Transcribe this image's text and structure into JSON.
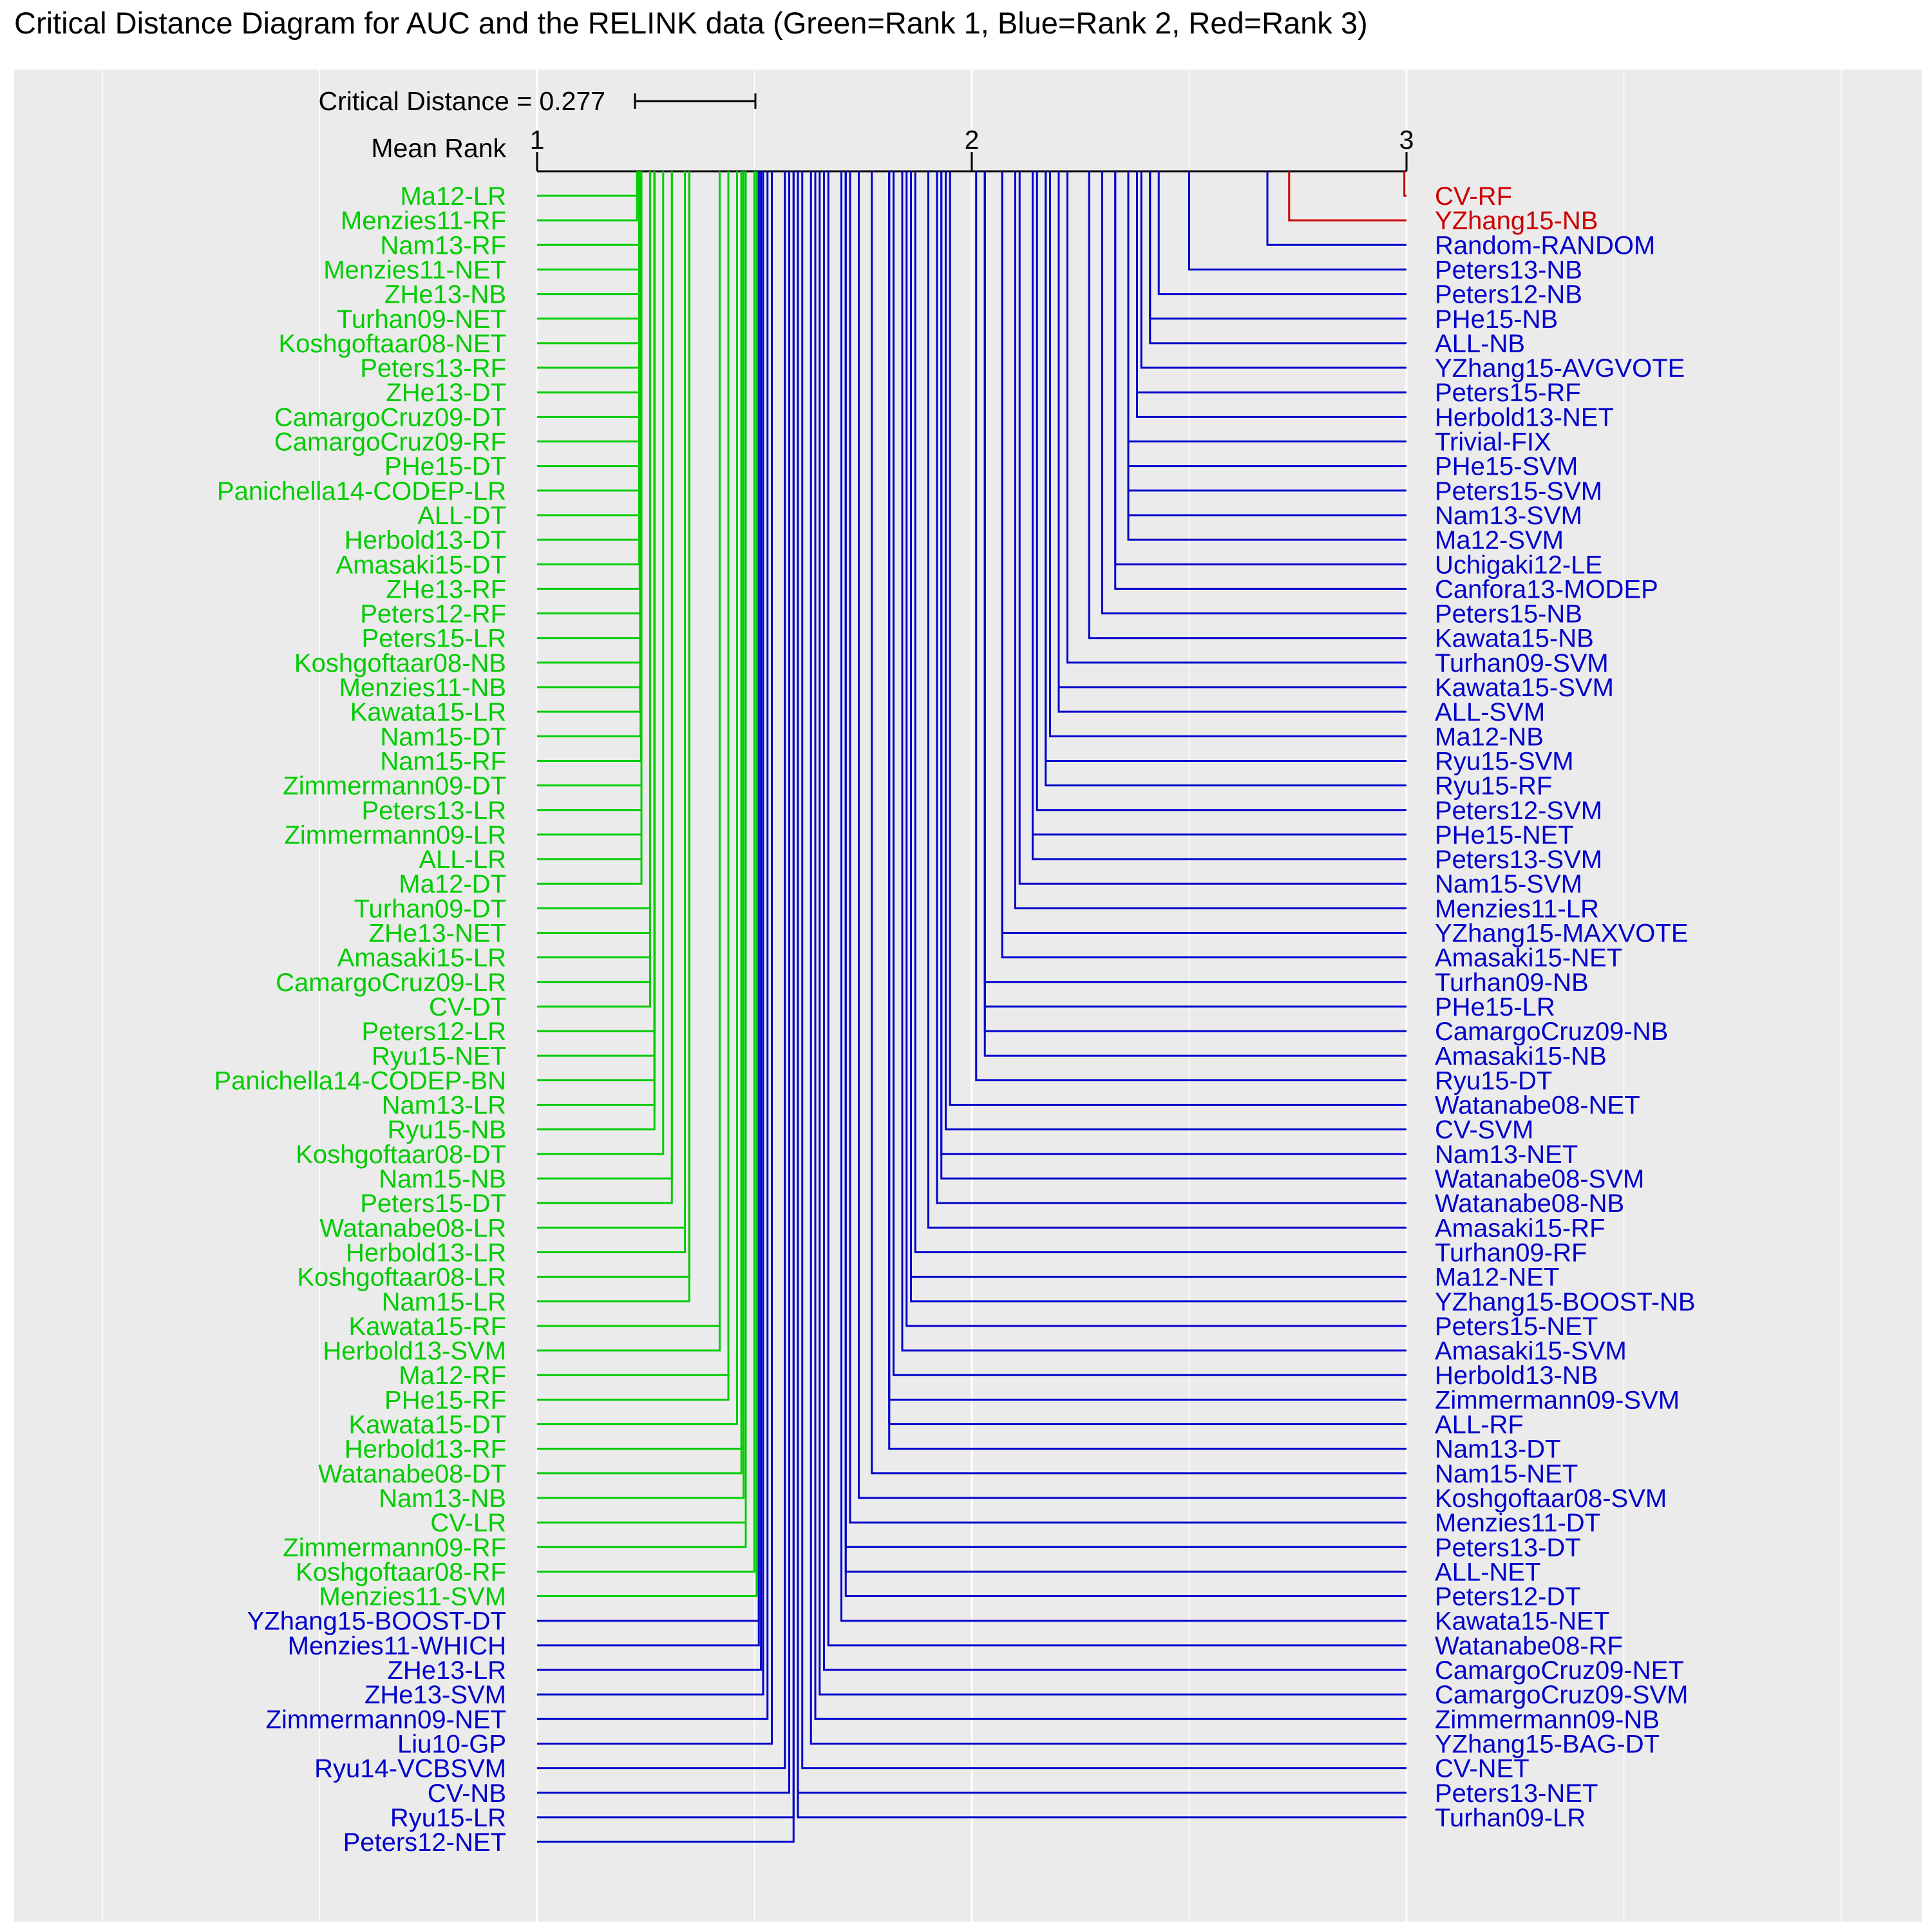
{
  "chart_data": {
    "type": "critical-distance-diagram",
    "title": "Critical Distance Diagram for AUC and the RELINK data (Green=Rank 1, Blue=Rank 2, Red=Rank 3)",
    "critical_distance_label": "Critical Distance = 0.277",
    "critical_distance": 0.277,
    "axis_label": "Mean Rank",
    "ticks": [
      "1",
      "2",
      "3"
    ],
    "xlim": [
      1,
      3
    ],
    "grid": true,
    "rank_colors": {
      "1": "#00cc00",
      "2": "#0000cc",
      "3": "#cc0000"
    },
    "left_items": [
      {
        "name": "Ma12-LR",
        "mean_rank": 1.23,
        "rank": 1
      },
      {
        "name": "Menzies11-RF",
        "mean_rank": 1.23,
        "rank": 1
      },
      {
        "name": "Nam13-RF",
        "mean_rank": 1.235,
        "rank": 1
      },
      {
        "name": "Menzies11-NET",
        "mean_rank": 1.235,
        "rank": 1
      },
      {
        "name": "ZHe13-NB",
        "mean_rank": 1.235,
        "rank": 1
      },
      {
        "name": "Turhan09-NET",
        "mean_rank": 1.235,
        "rank": 1
      },
      {
        "name": "Koshgoftaar08-NET",
        "mean_rank": 1.235,
        "rank": 1
      },
      {
        "name": "Peters13-RF",
        "mean_rank": 1.235,
        "rank": 1
      },
      {
        "name": "ZHe13-DT",
        "mean_rank": 1.235,
        "rank": 1
      },
      {
        "name": "CamargoCruz09-DT",
        "mean_rank": 1.235,
        "rank": 1
      },
      {
        "name": "CamargoCruz09-RF",
        "mean_rank": 1.235,
        "rank": 1
      },
      {
        "name": "PHe15-DT",
        "mean_rank": 1.235,
        "rank": 1
      },
      {
        "name": "Panichella14-CODEP-LR",
        "mean_rank": 1.235,
        "rank": 1
      },
      {
        "name": "ALL-DT",
        "mean_rank": 1.235,
        "rank": 1
      },
      {
        "name": "Herbold13-DT",
        "mean_rank": 1.235,
        "rank": 1
      },
      {
        "name": "Amasaki15-DT",
        "mean_rank": 1.235,
        "rank": 1
      },
      {
        "name": "ZHe13-RF",
        "mean_rank": 1.236,
        "rank": 1
      },
      {
        "name": "Peters12-RF",
        "mean_rank": 1.237,
        "rank": 1
      },
      {
        "name": "Peters15-LR",
        "mean_rank": 1.237,
        "rank": 1
      },
      {
        "name": "Koshgoftaar08-NB",
        "mean_rank": 1.237,
        "rank": 1
      },
      {
        "name": "Menzies11-NB",
        "mean_rank": 1.237,
        "rank": 1
      },
      {
        "name": "Kawata15-LR",
        "mean_rank": 1.237,
        "rank": 1
      },
      {
        "name": "Nam15-DT",
        "mean_rank": 1.238,
        "rank": 1
      },
      {
        "name": "Nam15-RF",
        "mean_rank": 1.239,
        "rank": 1
      },
      {
        "name": "Zimmermann09-DT",
        "mean_rank": 1.24,
        "rank": 1
      },
      {
        "name": "Peters13-LR",
        "mean_rank": 1.24,
        "rank": 1
      },
      {
        "name": "Zimmermann09-LR",
        "mean_rank": 1.24,
        "rank": 1
      },
      {
        "name": "ALL-LR",
        "mean_rank": 1.24,
        "rank": 1
      },
      {
        "name": "Ma12-DT",
        "mean_rank": 1.24,
        "rank": 1
      },
      {
        "name": "Turhan09-DT",
        "mean_rank": 1.26,
        "rank": 1
      },
      {
        "name": "ZHe13-NET",
        "mean_rank": 1.26,
        "rank": 1
      },
      {
        "name": "Amasaki15-LR",
        "mean_rank": 1.26,
        "rank": 1
      },
      {
        "name": "CamargoCruz09-LR",
        "mean_rank": 1.26,
        "rank": 1
      },
      {
        "name": "CV-DT",
        "mean_rank": 1.26,
        "rank": 1
      },
      {
        "name": "Peters12-LR",
        "mean_rank": 1.27,
        "rank": 1
      },
      {
        "name": "Ryu15-NET",
        "mean_rank": 1.27,
        "rank": 1
      },
      {
        "name": "Panichella14-CODEP-BN",
        "mean_rank": 1.27,
        "rank": 1
      },
      {
        "name": "Nam13-LR",
        "mean_rank": 1.27,
        "rank": 1
      },
      {
        "name": "Ryu15-NB",
        "mean_rank": 1.27,
        "rank": 1
      },
      {
        "name": "Koshgoftaar08-DT",
        "mean_rank": 1.29,
        "rank": 1
      },
      {
        "name": "Nam15-NB",
        "mean_rank": 1.31,
        "rank": 1
      },
      {
        "name": "Peters15-DT",
        "mean_rank": 1.31,
        "rank": 1
      },
      {
        "name": "Watanabe08-LR",
        "mean_rank": 1.34,
        "rank": 1
      },
      {
        "name": "Herbold13-LR",
        "mean_rank": 1.34,
        "rank": 1
      },
      {
        "name": "Koshgoftaar08-LR",
        "mean_rank": 1.35,
        "rank": 1
      },
      {
        "name": "Nam15-LR",
        "mean_rank": 1.35,
        "rank": 1
      },
      {
        "name": "Kawata15-RF",
        "mean_rank": 1.42,
        "rank": 1
      },
      {
        "name": "Herbold13-SVM",
        "mean_rank": 1.42,
        "rank": 1
      },
      {
        "name": "Ma12-RF",
        "mean_rank": 1.44,
        "rank": 1
      },
      {
        "name": "PHe15-RF",
        "mean_rank": 1.44,
        "rank": 1
      },
      {
        "name": "Kawata15-DT",
        "mean_rank": 1.46,
        "rank": 1
      },
      {
        "name": "Herbold13-RF",
        "mean_rank": 1.47,
        "rank": 1
      },
      {
        "name": "Watanabe08-DT",
        "mean_rank": 1.47,
        "rank": 1
      },
      {
        "name": "Nam13-NB",
        "mean_rank": 1.475,
        "rank": 1
      },
      {
        "name": "CV-LR",
        "mean_rank": 1.48,
        "rank": 1
      },
      {
        "name": "Zimmermann09-RF",
        "mean_rank": 1.48,
        "rank": 1
      },
      {
        "name": "Koshgoftaar08-RF",
        "mean_rank": 1.5,
        "rank": 1
      },
      {
        "name": "Menzies11-SVM",
        "mean_rank": 1.505,
        "rank": 1
      },
      {
        "name": "YZhang15-BOOST-DT",
        "mean_rank": 1.51,
        "rank": 2
      },
      {
        "name": "Menzies11-WHICH",
        "mean_rank": 1.51,
        "rank": 2
      },
      {
        "name": "ZHe13-LR",
        "mean_rank": 1.515,
        "rank": 2
      },
      {
        "name": "ZHe13-SVM",
        "mean_rank": 1.52,
        "rank": 2
      },
      {
        "name": "Zimmermann09-NET",
        "mean_rank": 1.53,
        "rank": 2
      },
      {
        "name": "Liu10-GP",
        "mean_rank": 1.54,
        "rank": 2
      },
      {
        "name": "Ryu14-VCBSVM",
        "mean_rank": 1.57,
        "rank": 2
      },
      {
        "name": "CV-NB",
        "mean_rank": 1.58,
        "rank": 2
      },
      {
        "name": "Ryu15-LR",
        "mean_rank": 1.59,
        "rank": 2
      },
      {
        "name": "Peters12-NET",
        "mean_rank": 1.59,
        "rank": 2
      }
    ],
    "right_items": [
      {
        "name": "CV-RF",
        "mean_rank": 2.995,
        "rank": 3
      },
      {
        "name": "YZhang15-NB",
        "mean_rank": 2.73,
        "rank": 3
      },
      {
        "name": "Random-RANDOM",
        "mean_rank": 2.68,
        "rank": 2
      },
      {
        "name": "Peters13-NB",
        "mean_rank": 2.5,
        "rank": 2
      },
      {
        "name": "Peters12-NB",
        "mean_rank": 2.43,
        "rank": 2
      },
      {
        "name": "PHe15-NB",
        "mean_rank": 2.41,
        "rank": 2
      },
      {
        "name": "ALL-NB",
        "mean_rank": 2.41,
        "rank": 2
      },
      {
        "name": "YZhang15-AVGVOTE",
        "mean_rank": 2.39,
        "rank": 2
      },
      {
        "name": "Peters15-RF",
        "mean_rank": 2.38,
        "rank": 2
      },
      {
        "name": "Herbold13-NET",
        "mean_rank": 2.38,
        "rank": 2
      },
      {
        "name": "Trivial-FIX",
        "mean_rank": 2.36,
        "rank": 2
      },
      {
        "name": "PHe15-SVM",
        "mean_rank": 2.36,
        "rank": 2
      },
      {
        "name": "Peters15-SVM",
        "mean_rank": 2.36,
        "rank": 2
      },
      {
        "name": "Nam13-SVM",
        "mean_rank": 2.36,
        "rank": 2
      },
      {
        "name": "Ma12-SVM",
        "mean_rank": 2.36,
        "rank": 2
      },
      {
        "name": "Uchigaki12-LE",
        "mean_rank": 2.33,
        "rank": 2
      },
      {
        "name": "Canfora13-MODEP",
        "mean_rank": 2.33,
        "rank": 2
      },
      {
        "name": "Peters15-NB",
        "mean_rank": 2.3,
        "rank": 2
      },
      {
        "name": "Kawata15-NB",
        "mean_rank": 2.27,
        "rank": 2
      },
      {
        "name": "Turhan09-SVM",
        "mean_rank": 2.22,
        "rank": 2
      },
      {
        "name": "Kawata15-SVM",
        "mean_rank": 2.2,
        "rank": 2
      },
      {
        "name": "ALL-SVM",
        "mean_rank": 2.2,
        "rank": 2
      },
      {
        "name": "Ma12-NB",
        "mean_rank": 2.18,
        "rank": 2
      },
      {
        "name": "Ryu15-SVM",
        "mean_rank": 2.17,
        "rank": 2
      },
      {
        "name": "Ryu15-RF",
        "mean_rank": 2.17,
        "rank": 2
      },
      {
        "name": "Peters12-SVM",
        "mean_rank": 2.15,
        "rank": 2
      },
      {
        "name": "PHe15-NET",
        "mean_rank": 2.14,
        "rank": 2
      },
      {
        "name": "Peters13-SVM",
        "mean_rank": 2.14,
        "rank": 2
      },
      {
        "name": "Nam15-SVM",
        "mean_rank": 2.11,
        "rank": 2
      },
      {
        "name": "Menzies11-LR",
        "mean_rank": 2.1,
        "rank": 2
      },
      {
        "name": "YZhang15-MAXVOTE",
        "mean_rank": 2.07,
        "rank": 2
      },
      {
        "name": "Amasaki15-NET",
        "mean_rank": 2.07,
        "rank": 2
      },
      {
        "name": "Turhan09-NB",
        "mean_rank": 2.03,
        "rank": 2
      },
      {
        "name": "PHe15-LR",
        "mean_rank": 2.03,
        "rank": 2
      },
      {
        "name": "CamargoCruz09-NB",
        "mean_rank": 2.03,
        "rank": 2
      },
      {
        "name": "Amasaki15-NB",
        "mean_rank": 2.03,
        "rank": 2
      },
      {
        "name": "Ryu15-DT",
        "mean_rank": 2.01,
        "rank": 2
      },
      {
        "name": "Watanabe08-NET",
        "mean_rank": 1.95,
        "rank": 2
      },
      {
        "name": "CV-SVM",
        "mean_rank": 1.94,
        "rank": 2
      },
      {
        "name": "Nam13-NET",
        "mean_rank": 1.93,
        "rank": 2
      },
      {
        "name": "Watanabe08-SVM",
        "mean_rank": 1.93,
        "rank": 2
      },
      {
        "name": "Watanabe08-NB",
        "mean_rank": 1.92,
        "rank": 2
      },
      {
        "name": "Amasaki15-RF",
        "mean_rank": 1.9,
        "rank": 2
      },
      {
        "name": "Turhan09-RF",
        "mean_rank": 1.87,
        "rank": 2
      },
      {
        "name": "Ma12-NET",
        "mean_rank": 1.86,
        "rank": 2
      },
      {
        "name": "YZhang15-BOOST-NB",
        "mean_rank": 1.86,
        "rank": 2
      },
      {
        "name": "Peters15-NET",
        "mean_rank": 1.85,
        "rank": 2
      },
      {
        "name": "Amasaki15-SVM",
        "mean_rank": 1.84,
        "rank": 2
      },
      {
        "name": "Herbold13-NB",
        "mean_rank": 1.82,
        "rank": 2
      },
      {
        "name": "Zimmermann09-SVM",
        "mean_rank": 1.81,
        "rank": 2
      },
      {
        "name": "ALL-RF",
        "mean_rank": 1.81,
        "rank": 2
      },
      {
        "name": "Nam13-DT",
        "mean_rank": 1.81,
        "rank": 2
      },
      {
        "name": "Nam15-NET",
        "mean_rank": 1.77,
        "rank": 2
      },
      {
        "name": "Koshgoftaar08-SVM",
        "mean_rank": 1.74,
        "rank": 2
      },
      {
        "name": "Menzies11-DT",
        "mean_rank": 1.72,
        "rank": 2
      },
      {
        "name": "Peters13-DT",
        "mean_rank": 1.71,
        "rank": 2
      },
      {
        "name": "ALL-NET",
        "mean_rank": 1.71,
        "rank": 2
      },
      {
        "name": "Peters12-DT",
        "mean_rank": 1.71,
        "rank": 2
      },
      {
        "name": "Kawata15-NET",
        "mean_rank": 1.7,
        "rank": 2
      },
      {
        "name": "Watanabe08-RF",
        "mean_rank": 1.67,
        "rank": 2
      },
      {
        "name": "CamargoCruz09-NET",
        "mean_rank": 1.66,
        "rank": 2
      },
      {
        "name": "CamargoCruz09-SVM",
        "mean_rank": 1.65,
        "rank": 2
      },
      {
        "name": "Zimmermann09-NB",
        "mean_rank": 1.64,
        "rank": 2
      },
      {
        "name": "YZhang15-BAG-DT",
        "mean_rank": 1.63,
        "rank": 2
      },
      {
        "name": "CV-NET",
        "mean_rank": 1.61,
        "rank": 2
      },
      {
        "name": "Peters13-NET",
        "mean_rank": 1.6,
        "rank": 2
      },
      {
        "name": "Turhan09-LR",
        "mean_rank": 1.6,
        "rank": 2
      }
    ]
  }
}
